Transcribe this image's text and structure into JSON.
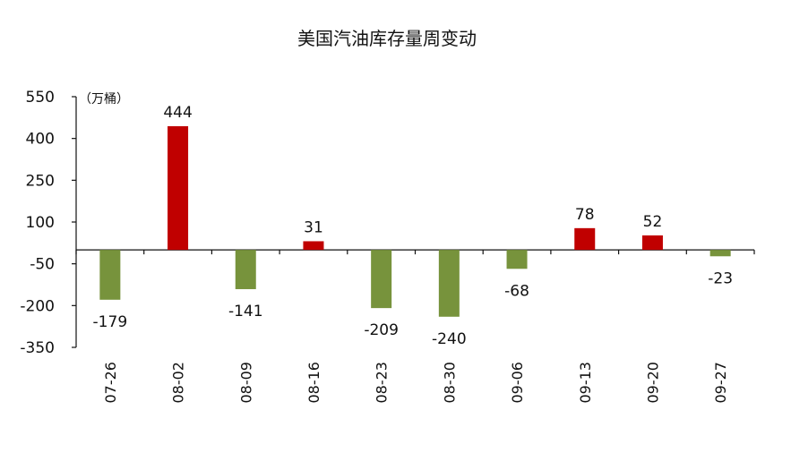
{
  "chart_data": {
    "type": "bar",
    "title": "美国汽油库存量周变动",
    "unit": "（万桶）",
    "xlabel": "",
    "ylabel": "",
    "categories": [
      "07-26",
      "08-02",
      "08-09",
      "08-16",
      "08-23",
      "08-30",
      "09-06",
      "09-13",
      "09-20",
      "09-27"
    ],
    "values": [
      -179,
      444,
      -141,
      31,
      -209,
      -240,
      -68,
      78,
      52,
      -23
    ],
    "value_labels": [
      "-179",
      "444",
      "-141",
      "31",
      "-209",
      "-240",
      "-68",
      "78",
      "52",
      "-23"
    ],
    "ylim": [
      -350,
      550
    ],
    "yticks": [
      550,
      400,
      250,
      100,
      -50,
      -200,
      -350
    ],
    "ytick_labels": [
      "550",
      "400",
      "250",
      "100",
      "-50",
      "-200",
      "-350"
    ],
    "grid": false,
    "legend": "none",
    "colors": {
      "positive": "#c00000",
      "negative": "#77933c",
      "axis": "#111111"
    }
  }
}
